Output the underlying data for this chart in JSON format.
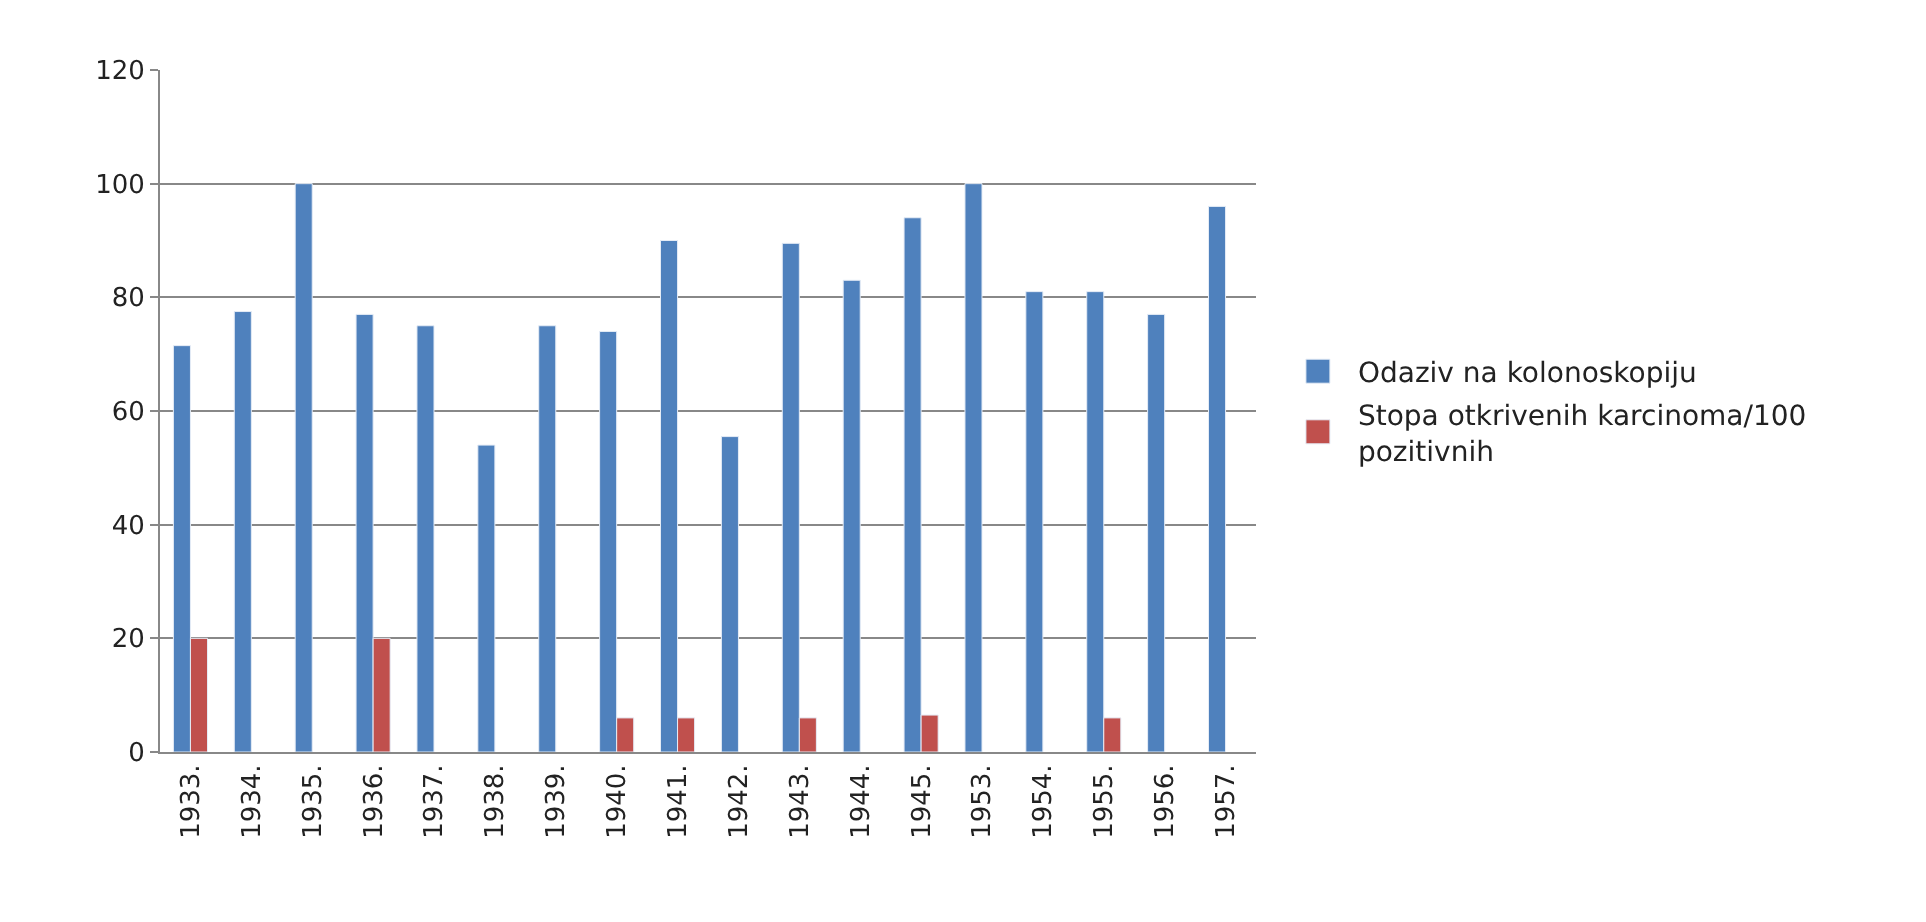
{
  "chart_data": {
    "type": "bar",
    "categories": [
      "1933.",
      "1934.",
      "1935.",
      "1936.",
      "1937.",
      "1938.",
      "1939.",
      "1940.",
      "1941.",
      "1942.",
      "1943.",
      "1944.",
      "1945.",
      "1953.",
      "1954.",
      "1955.",
      "1956.",
      "1957."
    ],
    "series": [
      {
        "name": "Odaziv na kolonoskopiju",
        "color": "#4f81bd",
        "values": [
          71.5,
          77.5,
          100,
          77,
          75,
          54,
          75,
          74,
          90,
          55.5,
          89.5,
          83,
          94,
          100,
          81,
          81,
          77,
          96
        ]
      },
      {
        "name": "Stopa otkrivenih karcinoma/100 pozitivnih",
        "color": "#c0504d",
        "values": [
          20,
          null,
          null,
          20,
          null,
          null,
          null,
          6,
          6,
          null,
          6,
          null,
          6.5,
          null,
          null,
          6,
          null,
          null
        ]
      }
    ],
    "ylim": [
      0,
      120
    ],
    "yticks": [
      0,
      20,
      40,
      60,
      80,
      100,
      120
    ],
    "grid": "y",
    "legend": "right"
  }
}
